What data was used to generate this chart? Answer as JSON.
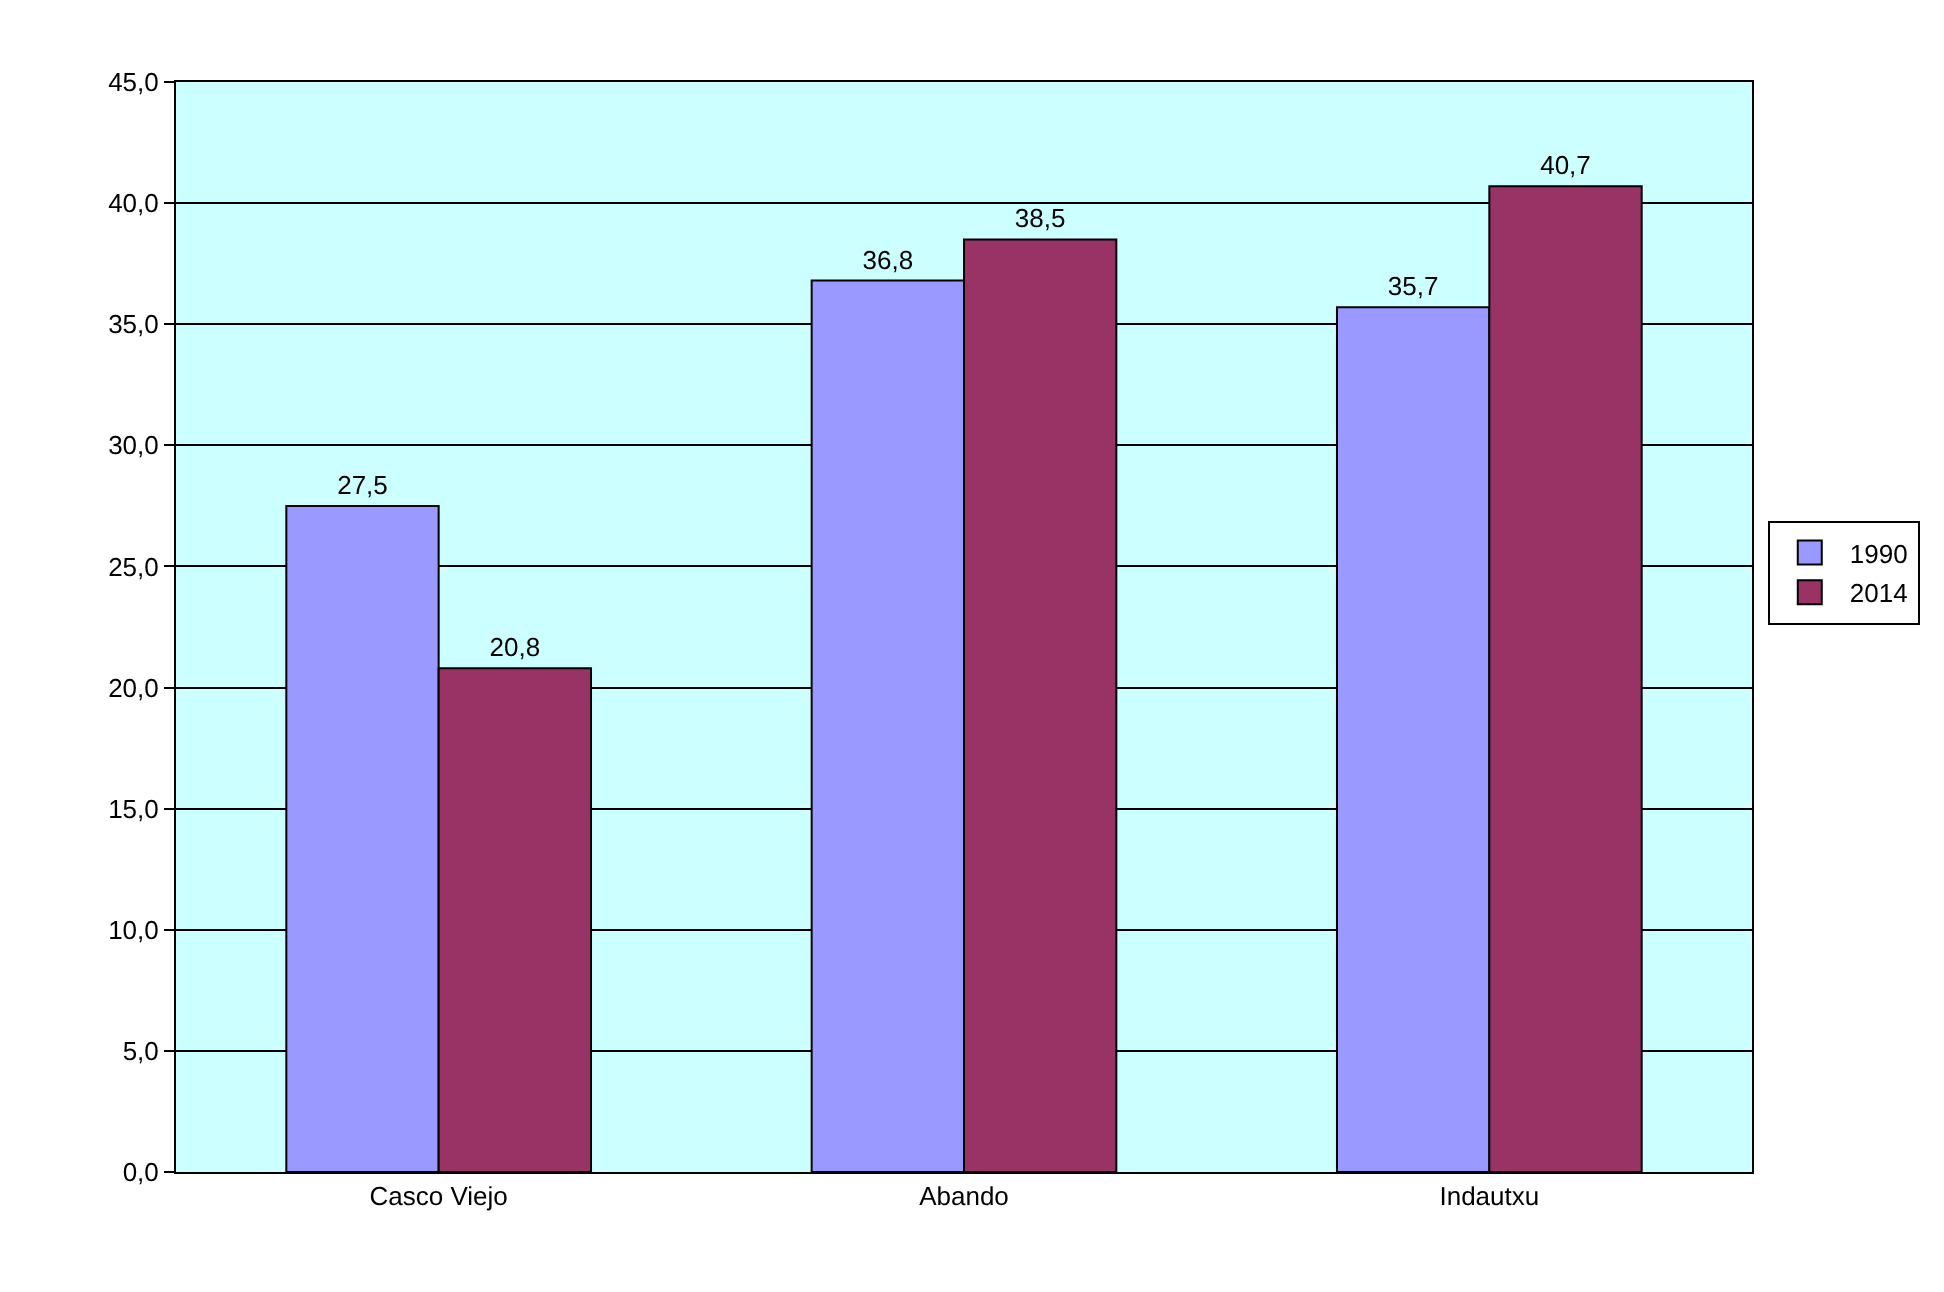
{
  "chart_data": {
    "type": "bar",
    "categories": [
      "Casco Viejo",
      "Abando",
      "Indautxu"
    ],
    "series": [
      {
        "name": "1990",
        "color": "#9999ff",
        "values": [
          27.5,
          36.8,
          35.7
        ],
        "value_labels": [
          "27,5",
          "36,8",
          "35,7"
        ]
      },
      {
        "name": "2014",
        "color": "#993366",
        "values": [
          20.8,
          38.5,
          40.7
        ],
        "value_labels": [
          "20,8",
          "38,5",
          "40,7"
        ]
      }
    ],
    "ylim": [
      0,
      45
    ],
    "yticks": [
      {
        "value": 0,
        "label": "0,0"
      },
      {
        "value": 5,
        "label": "5,0"
      },
      {
        "value": 10,
        "label": "10,0"
      },
      {
        "value": 15,
        "label": "15,0"
      },
      {
        "value": 20,
        "label": "20,0"
      },
      {
        "value": 25,
        "label": "25,0"
      },
      {
        "value": 30,
        "label": "30,0"
      },
      {
        "value": 35,
        "label": "35,0"
      },
      {
        "value": 40,
        "label": "40,0"
      },
      {
        "value": 45,
        "label": "45,0"
      }
    ],
    "grid": "y",
    "legend": "right"
  }
}
